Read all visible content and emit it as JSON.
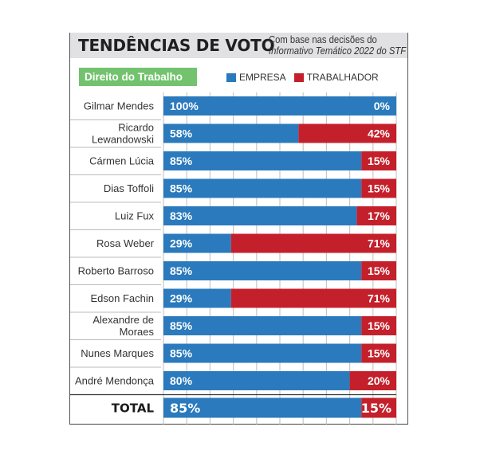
{
  "header": {
    "title": "TENDÊNCIAS DE VOTO",
    "subtitle_line1": "Com base nas decisões do",
    "subtitle_line2": "Informativo Temático 2022 do STF"
  },
  "tag": "Direito do Trabalho",
  "colors": {
    "empresa": "#2a7abd",
    "trabalhador": "#c4202b",
    "tag": "#73c26e",
    "header_bg": "#e1e1e3"
  },
  "legend": [
    {
      "label": "EMPRESA",
      "color": "#2a7abd"
    },
    {
      "label": "TRABALHADOR",
      "color": "#c4202b"
    }
  ],
  "chart_data": {
    "type": "bar",
    "orientation": "horizontal-stacked-100",
    "title": "TENDÊNCIAS DE VOTO",
    "subtitle": "Com base nas decisões do Informativo Temático 2022 do STF",
    "category_group": "Direito do Trabalho",
    "xlim": [
      0,
      100
    ],
    "grid": true,
    "grid_step": 10,
    "legend_position": "top",
    "categories": [
      [
        "Gilmar Mendes"
      ],
      [
        "Ricardo",
        "Lewandowski"
      ],
      [
        "Cármen Lúcia"
      ],
      [
        "Dias Toffoli"
      ],
      [
        "Luiz Fux"
      ],
      [
        "Rosa Weber"
      ],
      [
        "Roberto Barroso"
      ],
      [
        "Edson Fachin"
      ],
      [
        "Alexandre de",
        "Moraes"
      ],
      [
        "Nunes Marques"
      ],
      [
        "André Mendonça"
      ]
    ],
    "series": [
      {
        "name": "EMPRESA",
        "color": "#2a7abd",
        "values": [
          100,
          58,
          85,
          85,
          83,
          29,
          85,
          29,
          85,
          85,
          80
        ]
      },
      {
        "name": "TRABALHADOR",
        "color": "#c4202b",
        "values": [
          0,
          42,
          15,
          15,
          17,
          71,
          15,
          71,
          15,
          15,
          20
        ]
      }
    ],
    "total": {
      "label": "TOTAL",
      "empresa": 85,
      "trabalhador": 15
    },
    "value_suffix": "%"
  }
}
